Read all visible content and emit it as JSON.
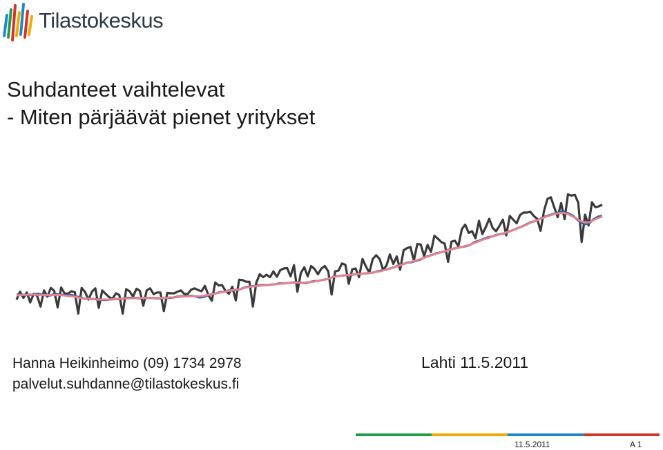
{
  "header": {
    "logo_text": "Tilastokeskus",
    "brand_colors": [
      "#1f9e4a",
      "#f2a900",
      "#1e88c8",
      "#d2342c"
    ]
  },
  "title": {
    "line1": "Suhdanteet vaihtelevat",
    "line2": "- Miten pärjäävät pienet yritykset"
  },
  "contact": {
    "name_phone": "Hanna Heikinheimo (09) 1734 2978",
    "email": "palvelut.suhdanne@tilastokeskus.fi"
  },
  "place_date": "Lahti 11.5.2011",
  "footer": {
    "date": "11.5.2011",
    "page": "A 1",
    "bar_colors": [
      "#1f9e4a",
      "#f2a900",
      "#1e88c8",
      "#d2342c"
    ]
  },
  "chart_data": {
    "type": "line",
    "title": "",
    "xlabel": "",
    "ylabel": "",
    "grid": false,
    "series": [
      {
        "color": "#3a3a3a",
        "values": [
          10,
          29,
          14,
          27,
          3,
          24,
          19,
          -7,
          32,
          17,
          38,
          31,
          -9,
          39,
          25,
          24,
          30,
          28,
          -24,
          38,
          28,
          10,
          29,
          37,
          -10,
          32,
          24,
          16,
          12,
          25,
          21,
          -24,
          35,
          30,
          17,
          36,
          31,
          -5,
          32,
          37,
          23,
          27,
          27,
          -18,
          26,
          25,
          25,
          29,
          32,
          23,
          24,
          34,
          37,
          33,
          30,
          43,
          21,
          7,
          51,
          44,
          45,
          31,
          24,
          41,
          8,
          58,
          57,
          53,
          53,
          -7,
          51,
          71,
          64,
          70,
          64,
          78,
          65,
          81,
          85,
          86,
          66,
          93,
          29,
          74,
          88,
          66,
          91,
          84,
          71,
          85,
          91,
          78,
          22,
          78,
          80,
          97,
          94,
          48,
          83,
          85,
          64,
          108,
          90,
          75,
          108,
          117,
          108,
          82,
          92,
          119,
          96,
          114,
          82,
          129,
          134,
          137,
          104,
          144,
          143,
          115,
          142,
          125,
          164,
          157,
          149,
          145,
          101,
          150,
          152,
          139,
          180,
          191,
          171,
          175,
          158,
          200,
          168,
          185,
          205,
          183,
          175,
          188,
          203,
          165,
          212,
          203,
          194,
          214,
          220,
          220,
          222,
          212,
          205,
          176,
          224,
          253,
          257,
          232,
          209,
          243,
          204,
          264,
          261,
          263,
          244,
          149,
          215,
          189,
          245,
          233,
          235,
          239
        ]
      },
      {
        "color": "#1f5fb8",
        "values": [
          22,
          22,
          21,
          21,
          22,
          24,
          22,
          20,
          20,
          24,
          22,
          21,
          20,
          21,
          17,
          16,
          12,
          12,
          11,
          11,
          9,
          9,
          10,
          11,
          11,
          12,
          14,
          14,
          14,
          13,
          13,
          14,
          14,
          13,
          13,
          14,
          14,
          15,
          17,
          18,
          18,
          19,
          18,
          15,
          16,
          20,
          23,
          25,
          28,
          29,
          32,
          32,
          33,
          36,
          40,
          41,
          43,
          44,
          45,
          45,
          46,
          47,
          49,
          49,
          50,
          51,
          52,
          51,
          50,
          52,
          54,
          55,
          57,
          59,
          62,
          66,
          67,
          68,
          69,
          70,
          71,
          72,
          73,
          74,
          75,
          78,
          80,
          82,
          85,
          88,
          92,
          95,
          99,
          100,
          103,
          106,
          111,
          115,
          118,
          122,
          124,
          127,
          131,
          133,
          135,
          137,
          139,
          143,
          149,
          152,
          156,
          160,
          162,
          166,
          168,
          170,
          174,
          178,
          182,
          186,
          191,
          196,
          199,
          203,
          208,
          212,
          215,
          218,
          221,
          222,
          218,
          213,
          204,
          196,
          192,
          195,
          204,
          210,
          212
        ]
      },
      {
        "color": "#e8828a",
        "values": [
          20,
          21,
          21,
          22,
          22,
          21,
          21,
          21,
          21,
          21,
          21,
          20,
          19,
          18,
          16,
          14,
          13,
          12,
          11,
          10,
          10,
          10,
          10,
          11,
          11,
          12,
          13,
          13,
          14,
          14,
          14,
          14,
          14,
          14,
          14,
          14,
          15,
          15,
          16,
          17,
          18,
          18,
          18,
          18,
          19,
          21,
          23,
          25,
          27,
          29,
          31,
          33,
          34,
          36,
          39,
          41,
          42,
          43,
          44,
          45,
          46,
          47,
          48,
          49,
          50,
          51,
          51,
          51,
          51,
          52,
          53,
          55,
          57,
          59,
          62,
          65,
          67,
          68,
          69,
          70,
          71,
          72,
          73,
          74,
          75,
          77,
          79,
          82,
          85,
          88,
          91,
          95,
          98,
          101,
          104,
          107,
          111,
          114,
          118,
          121,
          124,
          127,
          130,
          133,
          135,
          137,
          140,
          143,
          147,
          151,
          155,
          158,
          162,
          165,
          168,
          171,
          174,
          178,
          182,
          186,
          190,
          195,
          199,
          203,
          207,
          211,
          214,
          217,
          219,
          219,
          216,
          211,
          205,
          199,
          196,
          197,
          202,
          207,
          210
        ]
      }
    ]
  }
}
